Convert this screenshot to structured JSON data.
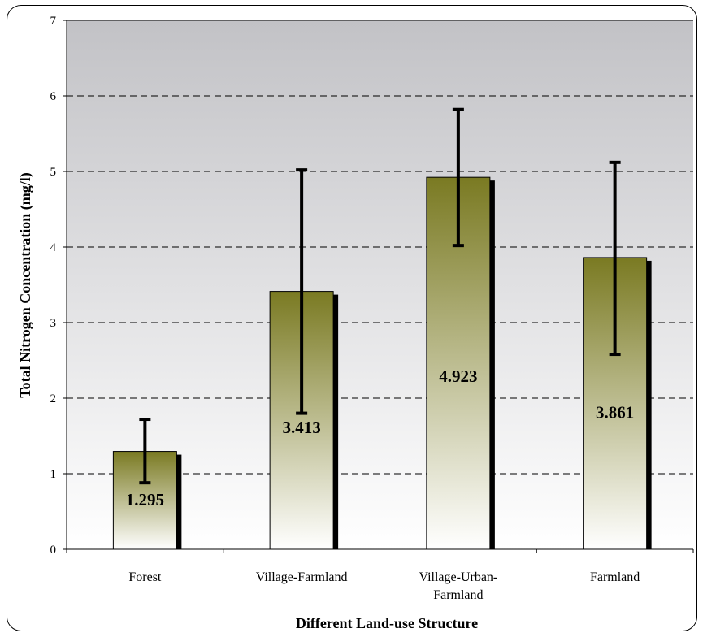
{
  "chart_data": {
    "type": "bar",
    "categories": [
      "Forest",
      "Village-Farmland",
      "Village-Urban-Farmland",
      "Farmland"
    ],
    "category_lines": [
      [
        "Forest"
      ],
      [
        "Village-Farmland"
      ],
      [
        "Village-Urban-",
        "Farmland"
      ],
      [
        "Farmland"
      ]
    ],
    "values": [
      1.295,
      3.413,
      4.923,
      3.861
    ],
    "value_labels": [
      "1.295",
      "3.413",
      "4.923",
      "3.861"
    ],
    "error_low": [
      0.88,
      1.8,
      4.02,
      2.58
    ],
    "error_high": [
      1.72,
      5.02,
      5.82,
      5.12
    ],
    "xlabel": "Different Land-use Structure",
    "ylabel": "Total Nitrogen Concentration (mg/l)",
    "ylim": [
      0,
      7
    ],
    "yticks": [
      0,
      1,
      2,
      3,
      4,
      5,
      6,
      7
    ],
    "grid": "horizontal-dashed",
    "colors": {
      "bar_top": "#7a7a22",
      "bar_bottom": "#ffffff",
      "bar_shadow": "#000000",
      "plot_bg_top": "#c2c2c6",
      "plot_bg_bottom": "#ffffff"
    }
  }
}
